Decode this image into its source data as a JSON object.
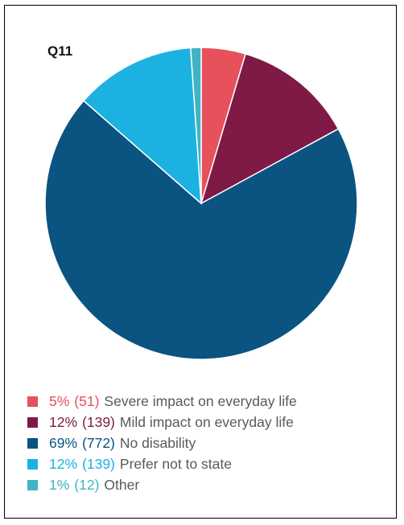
{
  "chart_data": {
    "type": "pie",
    "title": "Q11",
    "slices": [
      {
        "label": "Severe impact on everyday life",
        "percent_label": "5%",
        "count_label": "(51)",
        "value": 51,
        "color": "#e6515c"
      },
      {
        "label": "Mild impact on everyday life",
        "percent_label": "12%",
        "count_label": "(139)",
        "value": 139,
        "color": "#7e1a45"
      },
      {
        "label": "No disability",
        "percent_label": "69%",
        "count_label": "(772)",
        "value": 772,
        "color": "#0b5381"
      },
      {
        "label": "Prefer not to state",
        "percent_label": "12%",
        "count_label": "(139)",
        "value": 139,
        "color": "#1bb2e2"
      },
      {
        "label": "Other",
        "percent_label": "1%",
        "count_label": "(12)",
        "value": 12,
        "color": "#40b4c5"
      }
    ],
    "start_angle_deg": 0,
    "direction": "clockwise",
    "legend_position": "bottom"
  }
}
